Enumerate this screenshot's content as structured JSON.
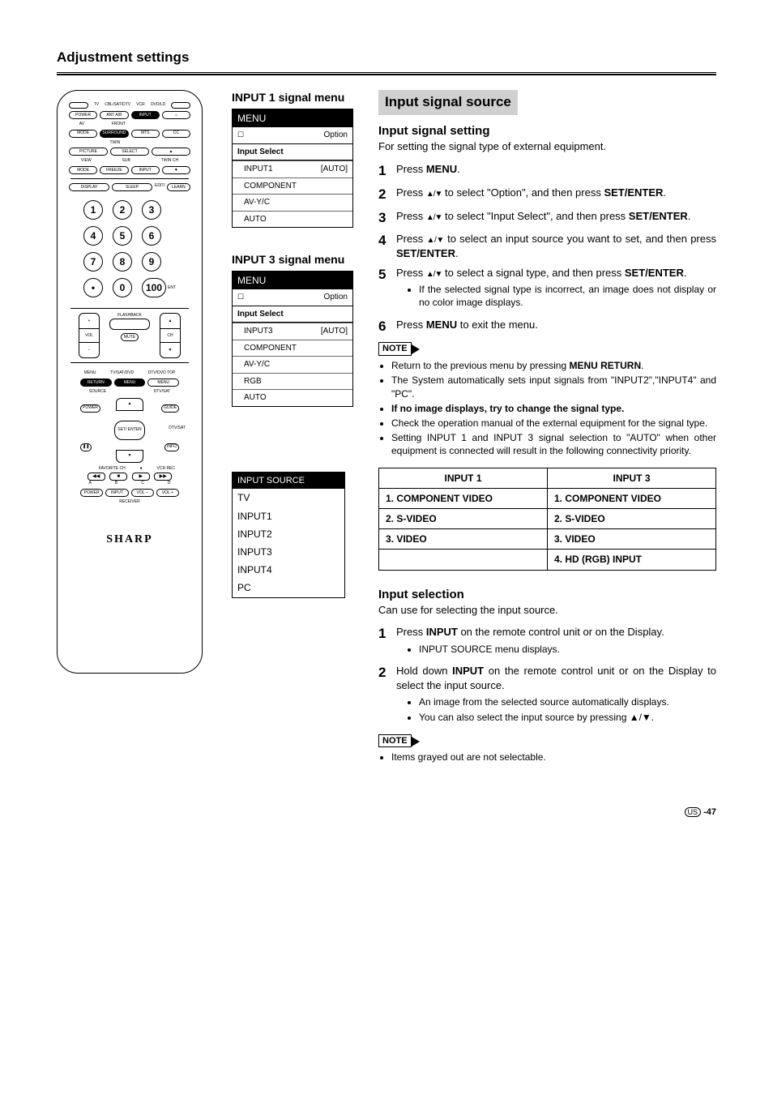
{
  "page": {
    "title": "Adjustment settings",
    "number": "-47",
    "region": "US"
  },
  "remote": {
    "brand": "SHARP",
    "top_labels": [
      "TV",
      "CBL/SAT/DTV",
      "VCR",
      "DVD/LD"
    ],
    "row1": [
      "POWER",
      "ANT A/B",
      "INPUT",
      ""
    ],
    "row2_label_left": "AV",
    "row2_label_right": "FRONT",
    "row2": [
      "MODE",
      "SURROUND",
      "MTS",
      "CC"
    ],
    "row3_label_left": "TWIN",
    "row3_rows": [
      [
        "PICTURE",
        "SELECT",
        "▲"
      ],
      [
        "",
        "SUB",
        "TWIN CH"
      ],
      [
        "MODE",
        "FREEZE",
        "INPUT",
        "▼"
      ]
    ],
    "row3_label_view": "VIEW",
    "row4": [
      "DISPLAY",
      "SLEEP",
      "EDIT/",
      "LEARN"
    ],
    "numbers": [
      "1",
      "2",
      "3",
      "4",
      "5",
      "6",
      "7",
      "8",
      "9",
      "•",
      "0",
      "100"
    ],
    "ent": "ENT",
    "flashback": "FLASHBACK",
    "vol": "VOL",
    "ch": "CH",
    "mute": "MUTE",
    "nav_labels": {
      "menu": "MENU",
      "tvsat": "TV/SAT/DVD",
      "dtvtop": "DTV/DVD TOP",
      "return": "RETURN",
      "menu2": "MENU",
      "menu3": "MENU",
      "source": "SOURCE",
      "dtvsat": "DTV/SAT",
      "power": "POWER",
      "guide": "GUIDE",
      "set": "SET/\nENTER",
      "info": "INFO",
      "fav": "FAVORITE CH",
      "vcr": "VCR REC"
    },
    "transport_labels": [
      "A",
      "B",
      "C",
      "D"
    ],
    "receiver_row": [
      "POWER",
      "INPUT",
      "VOL –",
      "VOL +"
    ],
    "receiver": "RECEIVER"
  },
  "menu1": {
    "title": "INPUT 1 signal menu",
    "header": "MENU",
    "option": "Option",
    "select": "Input Select",
    "rows": [
      {
        "l": "INPUT1",
        "r": "[AUTO]"
      },
      {
        "l": "COMPONENT",
        "r": ""
      },
      {
        "l": "AV-Y/C",
        "r": ""
      },
      {
        "l": "AUTO",
        "r": ""
      }
    ]
  },
  "menu3": {
    "title": "INPUT 3 signal menu",
    "header": "MENU",
    "option": "Option",
    "select": "Input Select",
    "rows": [
      {
        "l": "INPUT3",
        "r": "[AUTO]"
      },
      {
        "l": "COMPONENT",
        "r": ""
      },
      {
        "l": "AV-Y/C",
        "r": ""
      },
      {
        "l": "RGB",
        "r": ""
      },
      {
        "l": "AUTO",
        "r": ""
      }
    ]
  },
  "src": {
    "header": "INPUT SOURCE",
    "rows": [
      "TV",
      "INPUT1",
      "INPUT2",
      "INPUT3",
      "INPUT4",
      "PC"
    ]
  },
  "right": {
    "banner": "Input signal source",
    "sig_head": "Input signal setting",
    "sig_body": "For setting the signal type of external equipment.",
    "steps": [
      {
        "pre": "Press ",
        "b": "MENU",
        "post": "."
      },
      {
        "pre": "Press ",
        "arrows": true,
        "mid": " to select \"Option\", and then press ",
        "b": "SET/ENTER",
        "post": "."
      },
      {
        "pre": "Press ",
        "arrows": true,
        "mid": " to select \"Input Select\", and then press ",
        "b": "SET/ENTER",
        "post": "."
      },
      {
        "pre": "Press ",
        "arrows": true,
        "mid": " to select an input source you want to set, and then press ",
        "b": "SET/ENTER",
        "post": "."
      },
      {
        "pre": "Press ",
        "arrows": true,
        "mid": " to select a signal type, and then press ",
        "b": "SET/ENTER",
        "post": ".",
        "sub": [
          "If the selected signal type is incorrect, an image does not display or no color image displays."
        ]
      },
      {
        "pre": "Press ",
        "b": "MENU",
        "post": " to exit the menu."
      }
    ],
    "note_label": "NOTE",
    "notes1": [
      {
        "text": "Return to the previous menu by pressing ",
        "b": "MENU RETURN",
        "post": "."
      },
      {
        "text": "The System automatically sets input signals from \"INPUT2\",\"INPUT4\" and \"PC\"."
      },
      {
        "bold": true,
        "text": "If no image displays, try to change the signal type."
      },
      {
        "text": "Check the operation manual of the external equipment for the signal type."
      },
      {
        "text": "Setting INPUT 1 and INPUT 3 signal selection to \"AUTO\" when other equipment is connected will result in the following connectivity priority."
      }
    ],
    "table": {
      "headers": [
        "INPUT 1",
        "INPUT 3"
      ],
      "rows": [
        [
          "1. COMPONENT VIDEO",
          "1. COMPONENT VIDEO"
        ],
        [
          "2. S-VIDEO",
          "2. S-VIDEO"
        ],
        [
          "3. VIDEO",
          "3. VIDEO"
        ],
        [
          "",
          "4. HD (RGB) INPUT"
        ]
      ]
    },
    "sel_head": "Input selection",
    "sel_body": "Can use for selecting the input source.",
    "sel_steps": [
      {
        "pre": "Press ",
        "b": "INPUT",
        "post": " on the remote control unit or on the Display.",
        "sub": [
          "INPUT SOURCE menu displays."
        ]
      },
      {
        "pre": "Hold down ",
        "b": "INPUT",
        "post": " on the remote control unit or on the Display to select the input source.",
        "sub": [
          "An image from the selected source automatically displays.",
          "You can also select the input source by pressing ▲/▼."
        ]
      }
    ],
    "notes2": [
      {
        "text": "Items grayed out are not selectable."
      }
    ]
  }
}
